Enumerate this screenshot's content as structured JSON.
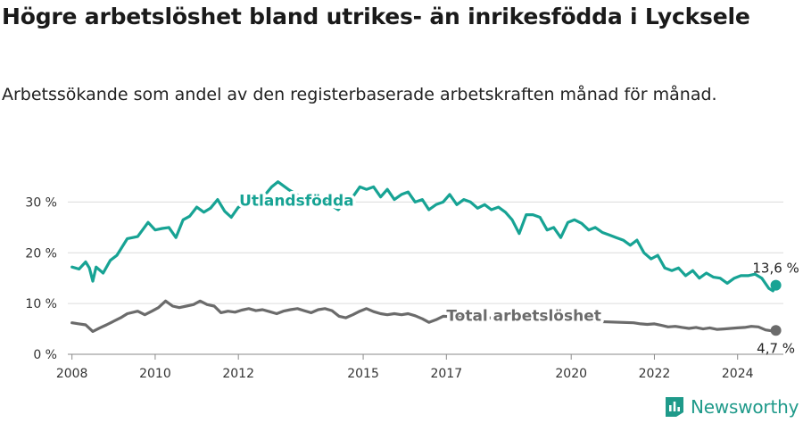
{
  "title": "Högre arbetslöshet bland utrikes- än inrikesfödda i Lycksele",
  "subtitle": "Arbetssökande som andel av den registerbaserade arbetskraften månad för månad.",
  "brand": "Newsworthy",
  "colors": {
    "teal": "#17a394",
    "gray": "#6b6b6b",
    "grid": "#dcdcdc",
    "brand": "#1f9a8a"
  },
  "chart_data": {
    "type": "line",
    "title": "Högre arbetslöshet bland utrikes- än inrikesfödda i Lycksele",
    "subtitle": "Arbetssökande som andel av den registerbaserade arbetskraften månad för månad.",
    "xlabel": "",
    "ylabel": "",
    "ylim": [
      0,
      35
    ],
    "xlim": [
      2007.9,
      2025.1
    ],
    "x_ticks": [
      2008,
      2010,
      2012,
      2015,
      2017,
      2020,
      2022,
      2024
    ],
    "x_tick_labels": [
      "2008",
      "2010",
      "2012",
      "2015",
      "2017",
      "2020",
      "2022",
      "2024"
    ],
    "y_ticks": [
      0,
      10,
      20,
      30
    ],
    "y_tick_labels": [
      "0 %",
      "10 %",
      "20 %",
      "30 %"
    ],
    "grid": true,
    "series": [
      {
        "name": "Utlandsfödda",
        "color": "#17a394",
        "end_label": "13,6 %",
        "points": [
          [
            2008.0,
            17.2
          ],
          [
            2008.17,
            16.8
          ],
          [
            2008.33,
            18.2
          ],
          [
            2008.42,
            17.0
          ],
          [
            2008.5,
            14.4
          ],
          [
            2008.58,
            17.2
          ],
          [
            2008.75,
            16.0
          ],
          [
            2008.92,
            18.5
          ],
          [
            2009.08,
            19.5
          ],
          [
            2009.33,
            22.8
          ],
          [
            2009.58,
            23.2
          ],
          [
            2009.83,
            26.0
          ],
          [
            2010.0,
            24.5
          ],
          [
            2010.17,
            24.8
          ],
          [
            2010.33,
            25.0
          ],
          [
            2010.5,
            23.0
          ],
          [
            2010.67,
            26.5
          ],
          [
            2010.83,
            27.2
          ],
          [
            2011.0,
            29.0
          ],
          [
            2011.17,
            28.0
          ],
          [
            2011.33,
            28.8
          ],
          [
            2011.5,
            30.5
          ],
          [
            2011.67,
            28.2
          ],
          [
            2011.83,
            27.0
          ],
          [
            2012.0,
            29.0
          ],
          [
            2012.2,
            29.5
          ],
          [
            2012.4,
            30.0
          ],
          [
            2012.6,
            31.0
          ],
          [
            2012.8,
            33.0
          ],
          [
            2012.95,
            34.0
          ],
          [
            2013.2,
            32.5
          ],
          [
            2013.5,
            31.0
          ],
          [
            2013.8,
            31.5
          ],
          [
            2014.1,
            30.0
          ],
          [
            2014.4,
            28.5
          ],
          [
            2014.6,
            30.5
          ],
          [
            2014.75,
            31.0
          ],
          [
            2014.92,
            33.0
          ],
          [
            2015.08,
            32.5
          ],
          [
            2015.25,
            33.0
          ],
          [
            2015.42,
            31.0
          ],
          [
            2015.58,
            32.5
          ],
          [
            2015.75,
            30.5
          ],
          [
            2015.92,
            31.5
          ],
          [
            2016.08,
            32.0
          ],
          [
            2016.25,
            30.0
          ],
          [
            2016.42,
            30.5
          ],
          [
            2016.58,
            28.5
          ],
          [
            2016.75,
            29.5
          ],
          [
            2016.92,
            30.0
          ],
          [
            2017.08,
            31.5
          ],
          [
            2017.25,
            29.5
          ],
          [
            2017.42,
            30.5
          ],
          [
            2017.58,
            30.0
          ],
          [
            2017.75,
            28.8
          ],
          [
            2017.92,
            29.5
          ],
          [
            2018.08,
            28.5
          ],
          [
            2018.25,
            29.0
          ],
          [
            2018.42,
            28.0
          ],
          [
            2018.58,
            26.5
          ],
          [
            2018.75,
            23.8
          ],
          [
            2018.92,
            27.5
          ],
          [
            2019.08,
            27.5
          ],
          [
            2019.25,
            27.0
          ],
          [
            2019.42,
            24.5
          ],
          [
            2019.58,
            25.0
          ],
          [
            2019.75,
            23.0
          ],
          [
            2019.92,
            26.0
          ],
          [
            2020.08,
            26.5
          ],
          [
            2020.25,
            25.8
          ],
          [
            2020.42,
            24.5
          ],
          [
            2020.58,
            25.0
          ],
          [
            2020.75,
            24.0
          ],
          [
            2020.92,
            23.5
          ],
          [
            2021.08,
            23.0
          ],
          [
            2021.25,
            22.5
          ],
          [
            2021.42,
            21.5
          ],
          [
            2021.58,
            22.5
          ],
          [
            2021.75,
            20.0
          ],
          [
            2021.92,
            18.8
          ],
          [
            2022.08,
            19.5
          ],
          [
            2022.25,
            17.0
          ],
          [
            2022.42,
            16.5
          ],
          [
            2022.58,
            17.0
          ],
          [
            2022.75,
            15.5
          ],
          [
            2022.92,
            16.5
          ],
          [
            2023.08,
            15.0
          ],
          [
            2023.25,
            16.0
          ],
          [
            2023.42,
            15.2
          ],
          [
            2023.58,
            15.0
          ],
          [
            2023.75,
            14.0
          ],
          [
            2023.92,
            15.0
          ],
          [
            2024.08,
            15.5
          ],
          [
            2024.25,
            15.5
          ],
          [
            2024.42,
            15.8
          ],
          [
            2024.58,
            15.0
          ],
          [
            2024.75,
            13.0
          ],
          [
            2024.85,
            12.5
          ],
          [
            2024.92,
            13.6
          ]
        ]
      },
      {
        "name": "Total arbetslöshet",
        "color": "#6b6b6b",
        "end_label": "4,7 %",
        "points": [
          [
            2008.0,
            6.2
          ],
          [
            2008.17,
            6.0
          ],
          [
            2008.33,
            5.8
          ],
          [
            2008.5,
            4.5
          ],
          [
            2008.67,
            5.2
          ],
          [
            2008.83,
            5.8
          ],
          [
            2009.0,
            6.5
          ],
          [
            2009.17,
            7.2
          ],
          [
            2009.33,
            8.0
          ],
          [
            2009.58,
            8.5
          ],
          [
            2009.75,
            7.8
          ],
          [
            2009.92,
            8.5
          ],
          [
            2010.08,
            9.2
          ],
          [
            2010.25,
            10.5
          ],
          [
            2010.42,
            9.5
          ],
          [
            2010.58,
            9.2
          ],
          [
            2010.75,
            9.5
          ],
          [
            2010.92,
            9.8
          ],
          [
            2011.08,
            10.5
          ],
          [
            2011.25,
            9.8
          ],
          [
            2011.42,
            9.5
          ],
          [
            2011.58,
            8.2
          ],
          [
            2011.75,
            8.5
          ],
          [
            2011.92,
            8.3
          ],
          [
            2012.08,
            8.7
          ],
          [
            2012.25,
            9.0
          ],
          [
            2012.42,
            8.6
          ],
          [
            2012.58,
            8.8
          ],
          [
            2012.75,
            8.4
          ],
          [
            2012.92,
            8.0
          ],
          [
            2013.08,
            8.5
          ],
          [
            2013.25,
            8.8
          ],
          [
            2013.42,
            9.0
          ],
          [
            2013.58,
            8.6
          ],
          [
            2013.75,
            8.2
          ],
          [
            2013.92,
            8.8
          ],
          [
            2014.08,
            9.0
          ],
          [
            2014.25,
            8.6
          ],
          [
            2014.42,
            7.5
          ],
          [
            2014.58,
            7.2
          ],
          [
            2014.75,
            7.8
          ],
          [
            2014.92,
            8.5
          ],
          [
            2015.08,
            9.0
          ],
          [
            2015.25,
            8.4
          ],
          [
            2015.42,
            8.0
          ],
          [
            2015.58,
            7.8
          ],
          [
            2015.75,
            8.0
          ],
          [
            2015.92,
            7.8
          ],
          [
            2016.08,
            8.0
          ],
          [
            2016.25,
            7.6
          ],
          [
            2016.42,
            7.0
          ],
          [
            2016.58,
            6.3
          ],
          [
            2016.75,
            6.8
          ],
          [
            2016.92,
            7.5
          ],
          [
            2021.5,
            6.2
          ],
          [
            2021.67,
            6.0
          ],
          [
            2021.83,
            5.9
          ],
          [
            2022.0,
            6.0
          ],
          [
            2022.17,
            5.7
          ],
          [
            2022.33,
            5.4
          ],
          [
            2022.5,
            5.5
          ],
          [
            2022.67,
            5.3
          ],
          [
            2022.83,
            5.1
          ],
          [
            2023.0,
            5.3
          ],
          [
            2023.17,
            5.0
          ],
          [
            2023.33,
            5.2
          ],
          [
            2023.5,
            4.9
          ],
          [
            2023.67,
            5.0
          ],
          [
            2023.83,
            5.1
          ],
          [
            2024.0,
            5.2
          ],
          [
            2024.17,
            5.3
          ],
          [
            2024.33,
            5.5
          ],
          [
            2024.5,
            5.4
          ],
          [
            2024.67,
            4.8
          ],
          [
            2024.83,
            4.6
          ],
          [
            2024.92,
            4.7
          ]
        ]
      }
    ],
    "annotations": [
      {
        "text": "Utlandsfödda",
        "series": 0
      },
      {
        "text": "Total arbetslöshet",
        "series": 1
      },
      {
        "text": "13,6 %",
        "series": 0
      },
      {
        "text": "4,7 %",
        "series": 1
      }
    ]
  }
}
